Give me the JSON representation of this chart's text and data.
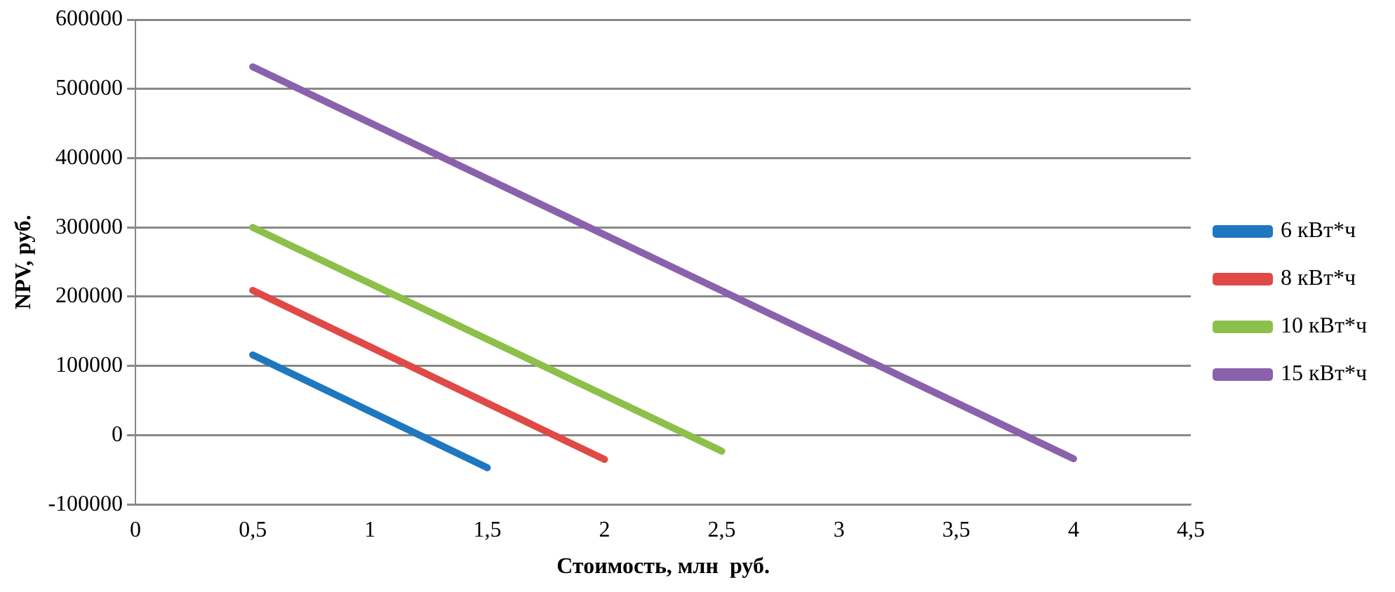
{
  "chart_data": {
    "type": "line",
    "xlabel": "Стоимость, млн  руб.",
    "ylabel": "NPV, руб.",
    "series": [
      {
        "name": "6 кВт*ч",
        "color": "#1f77c0",
        "x": [
          0.5,
          1.5
        ],
        "values": [
          116000,
          -47000
        ]
      },
      {
        "name": "8 кВт*ч",
        "color": "#e04a46",
        "x": [
          0.5,
          2
        ],
        "values": [
          209000,
          -35000
        ]
      },
      {
        "name": "10 кВт*ч",
        "color": "#8cc04a",
        "x": [
          0.5,
          2.5
        ],
        "values": [
          300000,
          -23000
        ]
      },
      {
        "name": "15 кВт*ч",
        "color": "#8a62ac",
        "x": [
          0.5,
          4
        ],
        "values": [
          532000,
          -34000
        ]
      }
    ],
    "xlim": [
      0,
      4.5
    ],
    "xticks": [
      0,
      {
        "value": 0.5,
        "label": "0,5"
      },
      1,
      {
        "value": 1.5,
        "label": "1,5"
      },
      2,
      {
        "value": 2.5,
        "label": "2,5"
      },
      3,
      {
        "value": 3.5,
        "label": "3,5"
      },
      4,
      {
        "value": 4.5,
        "label": "4,5"
      }
    ],
    "ylim": [
      -100000,
      600000
    ],
    "yticks": [
      -100000,
      0,
      100000,
      200000,
      300000,
      400000,
      500000,
      600000
    ],
    "grid": "y",
    "legend": "right",
    "marker": "none",
    "line_style": "solid"
  }
}
